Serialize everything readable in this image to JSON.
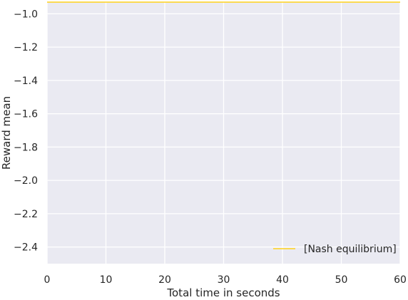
{
  "chart_data": {
    "type": "line",
    "xlabel": "Total time in seconds",
    "ylabel": "Reward mean",
    "xlim": [
      0,
      60
    ],
    "ylim": [
      -2.5,
      -0.93
    ],
    "x_ticks": [
      0,
      10,
      20,
      30,
      40,
      50,
      60
    ],
    "x_tick_labels": [
      "0",
      "10",
      "20",
      "30",
      "40",
      "50",
      "60"
    ],
    "y_ticks": [
      -1.0,
      -1.2,
      -1.4,
      -1.6,
      -1.8,
      -2.0,
      -2.2,
      -2.4
    ],
    "y_tick_labels": [
      "−1.0",
      "−1.2",
      "−1.4",
      "−1.6",
      "−1.8",
      "−2.0",
      "−2.2",
      "−2.4"
    ],
    "grid": true,
    "legend_position": "bottom-right",
    "series": [
      {
        "name": "[Nash equilibrium]",
        "color": "#ffd21a",
        "x": [
          0,
          60
        ],
        "y": [
          -0.93,
          -0.93
        ]
      }
    ],
    "background_color": "#eaeaf2",
    "grid_color": "#ffffff"
  }
}
